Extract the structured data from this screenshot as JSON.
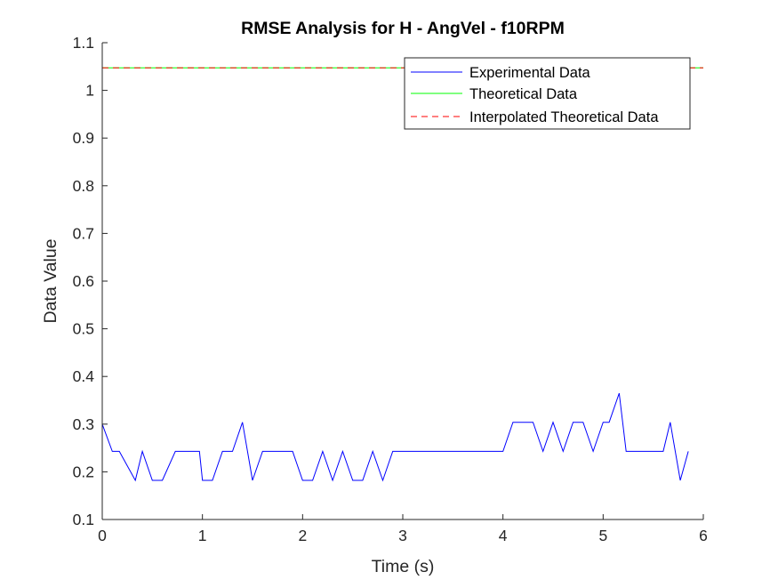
{
  "chart_data": {
    "type": "line",
    "title": "RMSE Analysis for H - AngVel - f10RPM",
    "xlabel": "Time (s)",
    "ylabel": "Data Value",
    "xlim": [
      0,
      6
    ],
    "ylim": [
      0.1,
      1.1
    ],
    "xticks": [
      "0",
      "1",
      "2",
      "3",
      "4",
      "5",
      "6"
    ],
    "yticks": [
      "0.1",
      "0.2",
      "0.3",
      "0.4",
      "0.5",
      "0.6",
      "0.7",
      "0.8",
      "0.9",
      "1",
      "1.1"
    ],
    "grid": false,
    "legend_location": "top-right",
    "series": [
      {
        "name": "Experimental Data",
        "color": "#0000ff",
        "style": "solid",
        "x": [
          0,
          0.1,
          0.17,
          0.33,
          0.4,
          0.5,
          0.6,
          0.73,
          0.83,
          0.97,
          1.0,
          1.1,
          1.2,
          1.3,
          1.4,
          1.5,
          1.6,
          1.7,
          1.8,
          1.9,
          2.0,
          2.1,
          2.2,
          2.3,
          2.4,
          2.5,
          2.6,
          2.7,
          2.8,
          2.9,
          3.0,
          3.5,
          4.0,
          4.1,
          4.2,
          4.3,
          4.4,
          4.5,
          4.6,
          4.7,
          4.8,
          4.9,
          5.0,
          5.06,
          5.16,
          5.23,
          5.35,
          5.5,
          5.6,
          5.67,
          5.77,
          5.85
        ],
        "y": [
          0.3,
          0.243,
          0.243,
          0.182,
          0.243,
          0.182,
          0.182,
          0.243,
          0.243,
          0.243,
          0.182,
          0.182,
          0.243,
          0.243,
          0.304,
          0.182,
          0.243,
          0.243,
          0.243,
          0.243,
          0.182,
          0.182,
          0.243,
          0.182,
          0.243,
          0.182,
          0.182,
          0.243,
          0.182,
          0.243,
          0.243,
          0.243,
          0.243,
          0.304,
          0.304,
          0.304,
          0.243,
          0.304,
          0.243,
          0.304,
          0.304,
          0.243,
          0.304,
          0.304,
          0.365,
          0.243,
          0.243,
          0.243,
          0.243,
          0.304,
          0.182,
          0.243
        ]
      },
      {
        "name": "Theoretical Data",
        "color": "#00ff00",
        "style": "solid",
        "x": [
          0,
          6.0
        ],
        "y": [
          1.0472,
          1.0472
        ]
      },
      {
        "name": "Interpolated Theoretical Data",
        "color": "#ff0000",
        "style": "dashed",
        "x": [
          0,
          6.0
        ],
        "y": [
          1.0472,
          1.0472
        ]
      }
    ]
  }
}
